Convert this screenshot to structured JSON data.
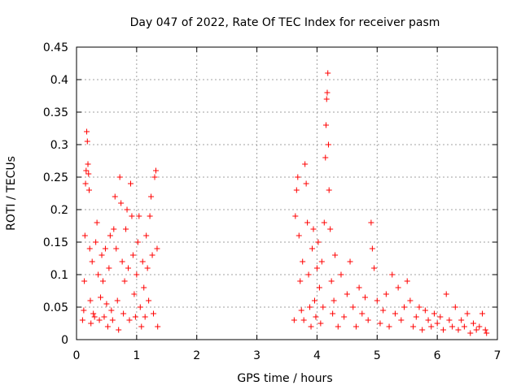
{
  "chart_data": {
    "type": "scatter",
    "title": "Day 047 of 2022, Rate Of TEC Index for receiver pasm",
    "xlabel": "GPS time / hours",
    "ylabel": "ROTI / TECUs",
    "xlim": [
      0,
      7
    ],
    "ylim": [
      0,
      0.45
    ],
    "xticks": [
      "0",
      "1",
      "2",
      "3",
      "4",
      "5",
      "6",
      "7"
    ],
    "yticks": [
      "0",
      "0.05",
      "0.1",
      "0.15",
      "0.2",
      "0.25",
      "0.3",
      "0.35",
      "0.4",
      "0.45"
    ],
    "grid": true,
    "marker": "+",
    "color": "#ff0000",
    "series": [
      {
        "name": "ROTI",
        "points": [
          [
            0.1,
            0.03
          ],
          [
            0.12,
            0.045
          ],
          [
            0.13,
            0.09
          ],
          [
            0.14,
            0.16
          ],
          [
            0.15,
            0.24
          ],
          [
            0.16,
            0.26
          ],
          [
            0.17,
            0.32
          ],
          [
            0.18,
            0.305
          ],
          [
            0.19,
            0.27
          ],
          [
            0.2,
            0.255
          ],
          [
            0.21,
            0.23
          ],
          [
            0.22,
            0.14
          ],
          [
            0.23,
            0.06
          ],
          [
            0.24,
            0.025
          ],
          [
            0.26,
            0.12
          ],
          [
            0.28,
            0.04
          ],
          [
            0.3,
            0.035
          ],
          [
            0.32,
            0.15
          ],
          [
            0.34,
            0.18
          ],
          [
            0.36,
            0.1
          ],
          [
            0.38,
            0.03
          ],
          [
            0.4,
            0.065
          ],
          [
            0.42,
            0.13
          ],
          [
            0.44,
            0.09
          ],
          [
            0.46,
            0.035
          ],
          [
            0.48,
            0.14
          ],
          [
            0.5,
            0.055
          ],
          [
            0.52,
            0.02
          ],
          [
            0.54,
            0.11
          ],
          [
            0.56,
            0.16
          ],
          [
            0.58,
            0.045
          ],
          [
            0.6,
            0.03
          ],
          [
            0.62,
            0.17
          ],
          [
            0.64,
            0.22
          ],
          [
            0.66,
            0.14
          ],
          [
            0.68,
            0.06
          ],
          [
            0.7,
            0.015
          ],
          [
            0.72,
            0.25
          ],
          [
            0.74,
            0.21
          ],
          [
            0.76,
            0.12
          ],
          [
            0.78,
            0.04
          ],
          [
            0.8,
            0.09
          ],
          [
            0.82,
            0.17
          ],
          [
            0.84,
            0.2
          ],
          [
            0.86,
            0.11
          ],
          [
            0.88,
            0.03
          ],
          [
            0.9,
            0.24
          ],
          [
            0.92,
            0.19
          ],
          [
            0.94,
            0.13
          ],
          [
            0.96,
            0.07
          ],
          [
            0.98,
            0.035
          ],
          [
            1.0,
            0.1
          ],
          [
            1.02,
            0.15
          ],
          [
            1.04,
            0.19
          ],
          [
            1.06,
            0.05
          ],
          [
            1.08,
            0.02
          ],
          [
            1.1,
            0.12
          ],
          [
            1.12,
            0.08
          ],
          [
            1.14,
            0.035
          ],
          [
            1.16,
            0.16
          ],
          [
            1.18,
            0.11
          ],
          [
            1.2,
            0.06
          ],
          [
            1.22,
            0.19
          ],
          [
            1.24,
            0.22
          ],
          [
            1.26,
            0.13
          ],
          [
            1.28,
            0.04
          ],
          [
            1.3,
            0.25
          ],
          [
            1.32,
            0.26
          ],
          [
            1.34,
            0.14
          ],
          [
            1.35,
            0.02
          ],
          [
            3.62,
            0.03
          ],
          [
            3.64,
            0.19
          ],
          [
            3.66,
            0.23
          ],
          [
            3.68,
            0.25
          ],
          [
            3.7,
            0.16
          ],
          [
            3.72,
            0.09
          ],
          [
            3.74,
            0.045
          ],
          [
            3.76,
            0.12
          ],
          [
            3.78,
            0.03
          ],
          [
            3.8,
            0.27
          ],
          [
            3.82,
            0.24
          ],
          [
            3.84,
            0.18
          ],
          [
            3.86,
            0.1
          ],
          [
            3.88,
            0.05
          ],
          [
            3.9,
            0.02
          ],
          [
            3.92,
            0.14
          ],
          [
            3.94,
            0.17
          ],
          [
            3.96,
            0.06
          ],
          [
            3.98,
            0.035
          ],
          [
            4.0,
            0.11
          ],
          [
            4.02,
            0.15
          ],
          [
            4.04,
            0.08
          ],
          [
            4.06,
            0.025
          ],
          [
            4.08,
            0.12
          ],
          [
            4.1,
            0.05
          ],
          [
            4.12,
            0.18
          ],
          [
            4.14,
            0.28
          ],
          [
            4.15,
            0.33
          ],
          [
            4.16,
            0.37
          ],
          [
            4.17,
            0.38
          ],
          [
            4.18,
            0.41
          ],
          [
            4.19,
            0.3
          ],
          [
            4.2,
            0.23
          ],
          [
            4.22,
            0.17
          ],
          [
            4.24,
            0.09
          ],
          [
            4.26,
            0.04
          ],
          [
            4.28,
            0.06
          ],
          [
            4.3,
            0.13
          ],
          [
            4.35,
            0.02
          ],
          [
            4.4,
            0.1
          ],
          [
            4.45,
            0.035
          ],
          [
            4.5,
            0.07
          ],
          [
            4.55,
            0.12
          ],
          [
            4.6,
            0.05
          ],
          [
            4.65,
            0.02
          ],
          [
            4.7,
            0.08
          ],
          [
            4.75,
            0.04
          ],
          [
            4.8,
            0.065
          ],
          [
            4.85,
            0.03
          ],
          [
            4.9,
            0.18
          ],
          [
            4.92,
            0.14
          ],
          [
            4.95,
            0.11
          ],
          [
            5.0,
            0.06
          ],
          [
            5.05,
            0.025
          ],
          [
            5.1,
            0.045
          ],
          [
            5.15,
            0.07
          ],
          [
            5.2,
            0.02
          ],
          [
            5.25,
            0.1
          ],
          [
            5.3,
            0.04
          ],
          [
            5.35,
            0.08
          ],
          [
            5.4,
            0.03
          ],
          [
            5.45,
            0.05
          ],
          [
            5.5,
            0.09
          ],
          [
            5.55,
            0.06
          ],
          [
            5.6,
            0.02
          ],
          [
            5.65,
            0.035
          ],
          [
            5.7,
            0.05
          ],
          [
            5.75,
            0.015
          ],
          [
            5.8,
            0.045
          ],
          [
            5.85,
            0.03
          ],
          [
            5.9,
            0.02
          ],
          [
            5.95,
            0.04
          ],
          [
            6.0,
            0.025
          ],
          [
            6.05,
            0.035
          ],
          [
            6.1,
            0.015
          ],
          [
            6.15,
            0.07
          ],
          [
            6.2,
            0.03
          ],
          [
            6.25,
            0.02
          ],
          [
            6.3,
            0.05
          ],
          [
            6.35,
            0.015
          ],
          [
            6.4,
            0.03
          ],
          [
            6.45,
            0.02
          ],
          [
            6.5,
            0.04
          ],
          [
            6.55,
            0.01
          ],
          [
            6.6,
            0.025
          ],
          [
            6.65,
            0.015
          ],
          [
            6.7,
            0.02
          ],
          [
            6.75,
            0.04
          ],
          [
            6.8,
            0.015
          ],
          [
            6.82,
            0.01
          ]
        ]
      }
    ]
  }
}
